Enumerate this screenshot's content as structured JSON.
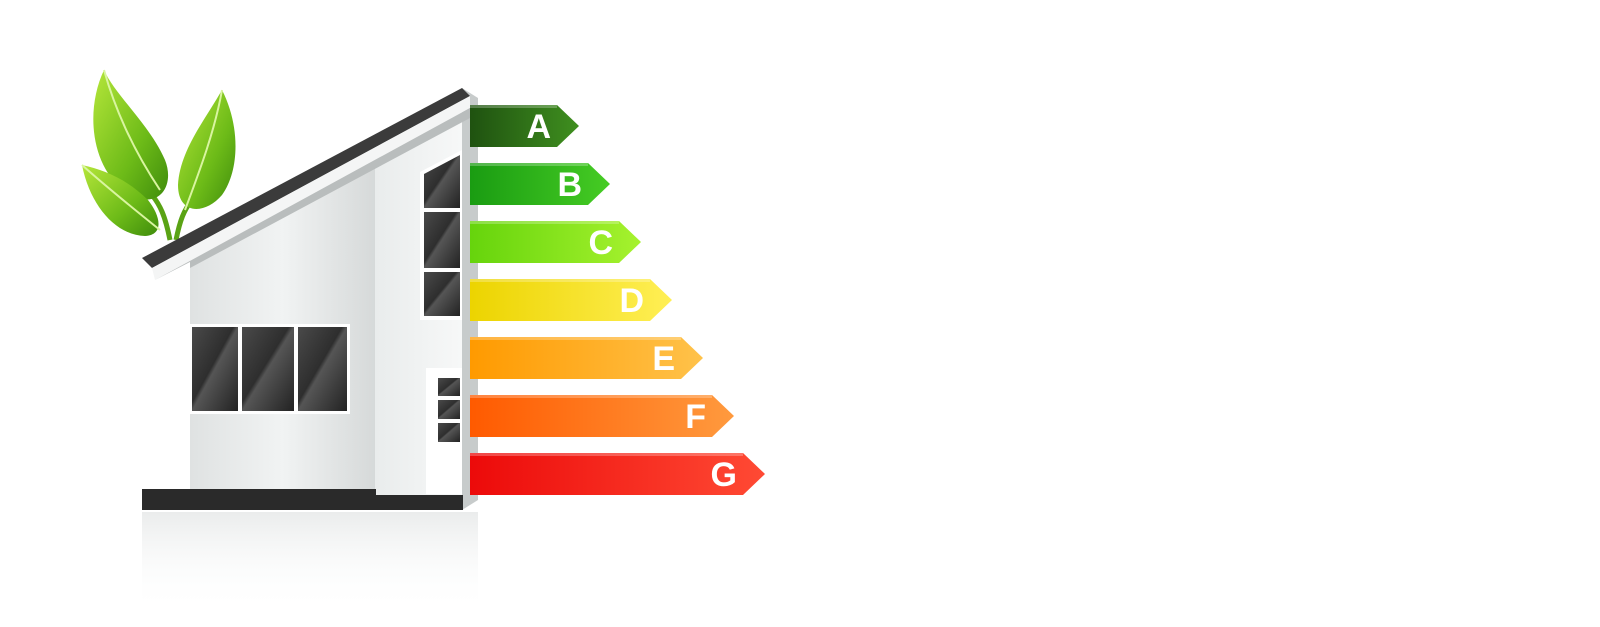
{
  "energy_rating": {
    "classes": [
      {
        "letter": "A",
        "color_dark": "#1f5210",
        "color_light": "#3f8f1f"
      },
      {
        "letter": "B",
        "color_dark": "#1a9c12",
        "color_light": "#46cc24"
      },
      {
        "letter": "C",
        "color_dark": "#66d40c",
        "color_light": "#a6f22e"
      },
      {
        "letter": "D",
        "color_dark": "#ecd400",
        "color_light": "#ffef55"
      },
      {
        "letter": "E",
        "color_dark": "#ff9a00",
        "color_light": "#ffc24a"
      },
      {
        "letter": "F",
        "color_dark": "#ff5a00",
        "color_light": "#ff9a3e"
      },
      {
        "letter": "G",
        "color_dark": "#ec0a0a",
        "color_light": "#ff4a34"
      }
    ]
  },
  "icons": {
    "house": "house-illustration",
    "leaves": "green-leaves"
  },
  "colors": {
    "background": "#ffffff",
    "leaf_green": "#7cc61e",
    "house_wall": "#e8eaea",
    "window_glass": "#2b2b2b"
  }
}
